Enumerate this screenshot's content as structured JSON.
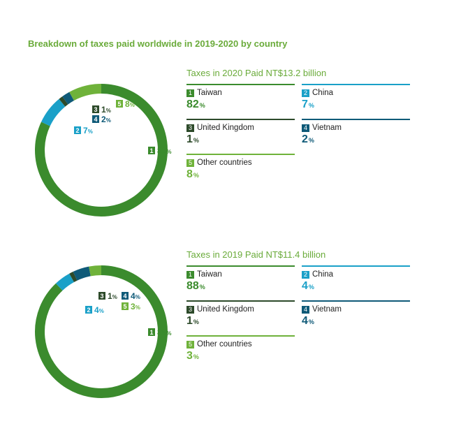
{
  "title": "Breakdown of taxes paid worldwide in 2019-2020 by country",
  "chart_data": [
    {
      "type": "pie",
      "title": "Taxes in 2020 Paid NT$13.2 billion",
      "categories": [
        "Taiwan",
        "China",
        "United Kingdom",
        "Vietnam",
        "Other countries"
      ],
      "numbers": [
        "1",
        "2",
        "3",
        "4",
        "5"
      ],
      "values": [
        82,
        7,
        1,
        2,
        8
      ],
      "unit": "%",
      "colors": [
        "#3b8b2d",
        "#1aa0c8",
        "#2d4a2a",
        "#0f5a78",
        "#6fb23a"
      ],
      "hole": true
    },
    {
      "type": "pie",
      "title": "Taxes in 2019 Paid NT$11.4 billion",
      "categories": [
        "Taiwan",
        "China",
        "United Kingdom",
        "Vietnam",
        "Other countries"
      ],
      "numbers": [
        "1",
        "2",
        "3",
        "4",
        "5"
      ],
      "values": [
        88,
        4,
        1,
        4,
        3
      ],
      "unit": "%",
      "colors": [
        "#3b8b2d",
        "#1aa0c8",
        "#2d4a2a",
        "#0f5a78",
        "#6fb23a"
      ],
      "hole": true
    }
  ]
}
